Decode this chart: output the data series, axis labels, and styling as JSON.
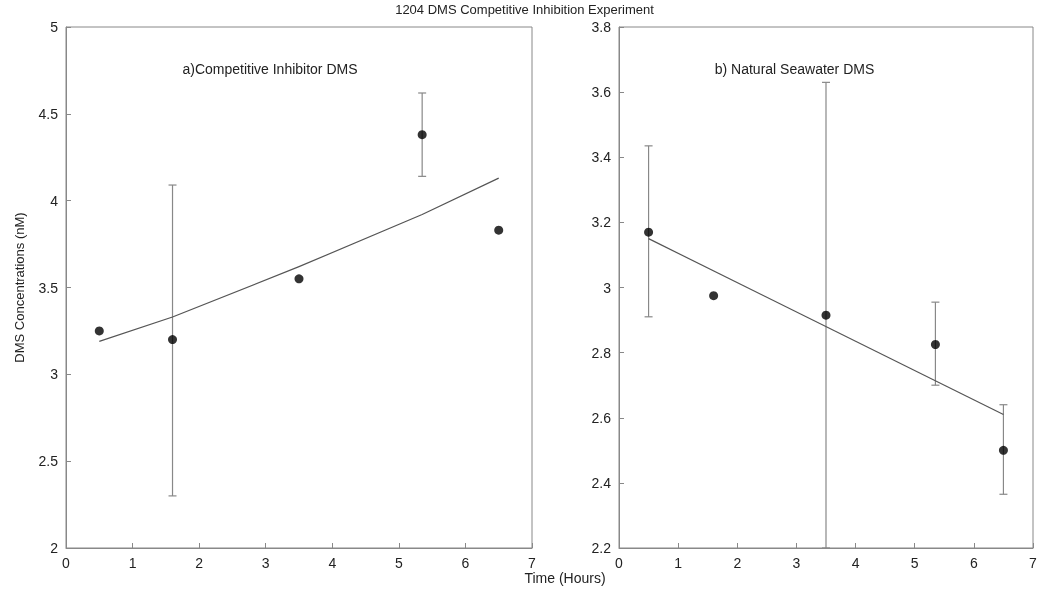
{
  "chart_data": [
    {
      "type": "scatter",
      "title": "1204 DMS Competitive Inhibition Experiment",
      "xlabel": "Time (Hours)",
      "ylabel": "DMS Concentrations (nM)",
      "annotations": [
        "a)Competitive Inhibitor DMS"
      ],
      "xlim": [
        0,
        7
      ],
      "xticks": [
        0,
        1,
        2,
        3,
        4,
        5,
        6,
        7
      ],
      "ylim": [
        2,
        5
      ],
      "yticks": [
        2,
        2.5,
        3,
        3.5,
        4,
        4.5,
        5
      ],
      "series": [
        {
          "marker": "circle",
          "color": "#000000",
          "x": [
            0.5,
            1.6,
            3.5,
            5.35,
            6.5
          ],
          "values": [
            3.25,
            3.2,
            3.55,
            4.38,
            3.83
          ],
          "errors": [
            null,
            [
              2.3,
              4.09
            ],
            null,
            [
              4.14,
              4.62
            ],
            null
          ]
        },
        {
          "type": "line",
          "marker": "none",
          "color": "#555555",
          "x": [
            0.5,
            1.6,
            3.5,
            5.35,
            6.5
          ],
          "values": [
            3.19,
            3.33,
            3.62,
            3.92,
            4.13
          ]
        }
      ]
    },
    {
      "type": "scatter",
      "annotations": [
        "b) Natural Seawater DMS"
      ],
      "xlim": [
        0,
        7
      ],
      "xticks": [
        0,
        1,
        2,
        3,
        4,
        5,
        6,
        7
      ],
      "ylim": [
        2.2,
        3.8
      ],
      "yticks": [
        2.2,
        2.4,
        2.6,
        2.8,
        3,
        3.2,
        3.4,
        3.6,
        3.8
      ],
      "series": [
        {
          "marker": "circle",
          "color": "#000000",
          "x": [
            0.5,
            1.6,
            3.5,
            5.35,
            6.5
          ],
          "values": [
            3.17,
            2.975,
            2.915,
            2.825,
            2.5
          ],
          "errors": [
            [
              2.91,
              3.435
            ],
            null,
            [
              2.2,
              3.63
            ],
            [
              2.7,
              2.955
            ],
            [
              2.365,
              2.64
            ]
          ]
        },
        {
          "type": "line",
          "marker": "none",
          "color": "#555555",
          "x": [
            0.5,
            6.5
          ],
          "values": [
            3.15,
            2.61
          ]
        }
      ]
    }
  ]
}
